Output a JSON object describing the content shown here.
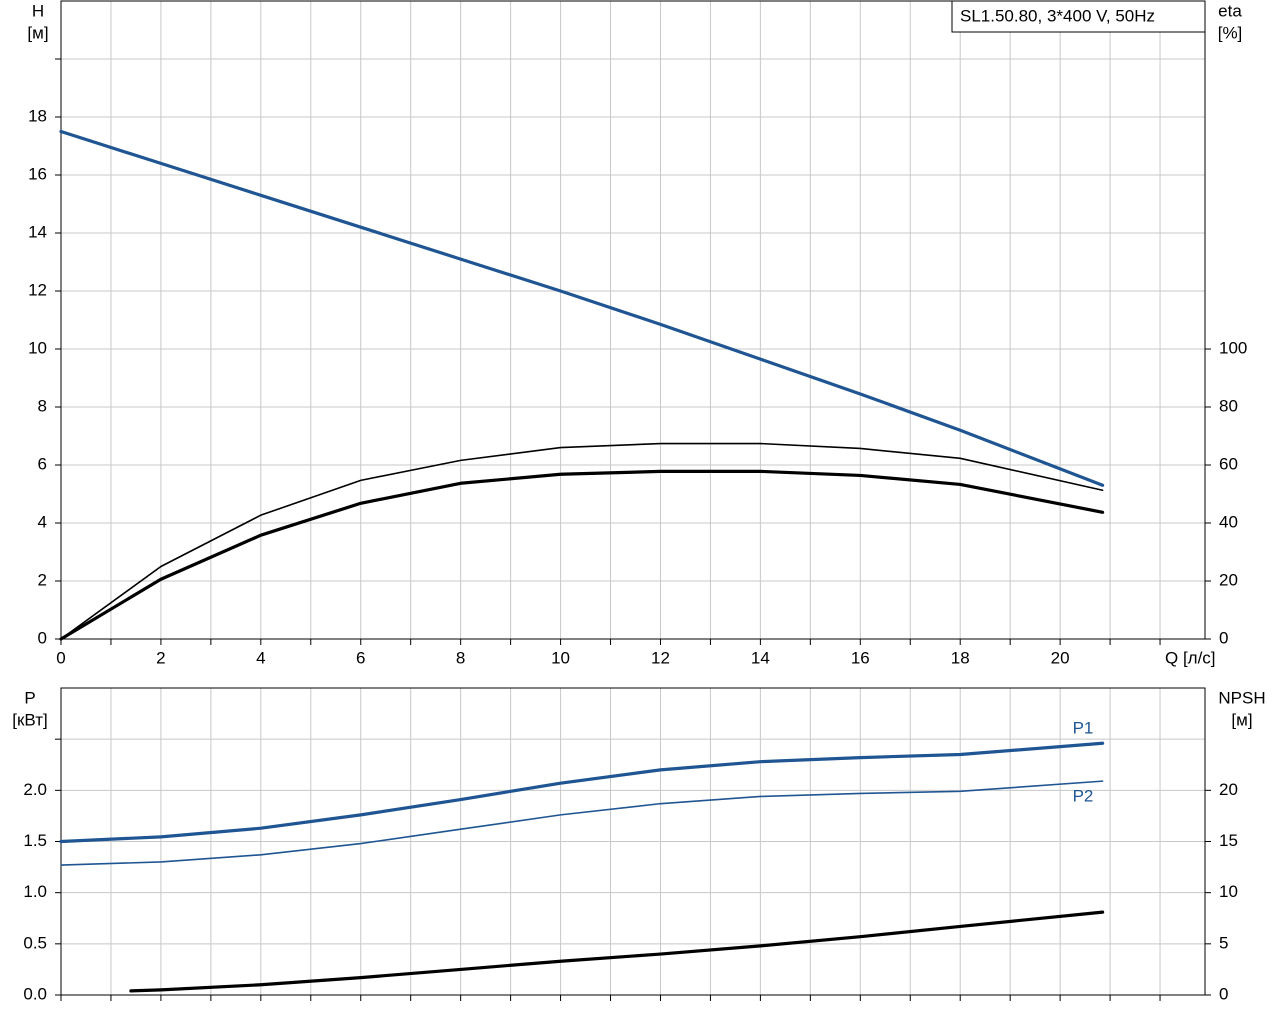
{
  "chart_data": [
    {
      "type": "line",
      "title": "SL1.50.80, 3*400 V, 50Hz",
      "ylabel": "H",
      "yunit": "[м]",
      "y2label": "eta",
      "y2unit": "[%]",
      "xlabel": "Q [л/с]",
      "xlim": [
        0,
        22.9
      ],
      "xticks": [
        0,
        2,
        4,
        6,
        8,
        10,
        12,
        14,
        16,
        18,
        20
      ],
      "x_minor_ticks": [
        1,
        3,
        5,
        7,
        9,
        11,
        13,
        15,
        17,
        19,
        21,
        22
      ],
      "ylim": [
        0,
        22
      ],
      "yticks": [
        0,
        2,
        4,
        6,
        8,
        10,
        12,
        14,
        16,
        18
      ],
      "y_minor_ticks": [
        20
      ],
      "y2lim": [
        0,
        220
      ],
      "y2ticks": [
        0,
        20,
        40,
        60,
        80,
        100
      ],
      "grid": true,
      "series": [
        {
          "color": "#1f5592",
          "line_width": 3.2,
          "x": [
            0,
            2,
            4,
            6,
            8,
            10,
            12,
            14,
            16,
            18,
            20.85
          ],
          "values": [
            17.5,
            16.4,
            15.3,
            14.2,
            13.1,
            12.0,
            10.85,
            9.65,
            8.45,
            7.2,
            5.3
          ]
        },
        {
          "color": "#000000",
          "line_width": 1.6,
          "axis": "y2",
          "x": [
            0,
            2,
            4,
            6,
            8,
            10,
            12,
            14,
            16,
            18,
            20.85
          ],
          "values": [
            0,
            25,
            42.7,
            54.7,
            61.6,
            66,
            67.4,
            67.4,
            65.7,
            62.3,
            51.3
          ]
        },
        {
          "color": "#000000",
          "line_width": 3.2,
          "axis": "y2",
          "x": [
            0,
            2,
            4,
            6,
            8,
            10,
            12,
            14,
            16,
            18,
            20.85
          ],
          "values": [
            0,
            20.6,
            35.8,
            46.8,
            53.7,
            56.8,
            57.8,
            57.8,
            56.4,
            53.3,
            43.7
          ]
        }
      ]
    },
    {
      "type": "line",
      "ylabel": "P",
      "yunit": "[кВт]",
      "y2label": "NPSH",
      "y2unit": "[м]",
      "xlim": [
        0,
        22.9
      ],
      "x_minor_ticks": [
        0,
        1,
        2,
        3,
        4,
        5,
        6,
        7,
        8,
        9,
        10,
        11,
        12,
        13,
        14,
        15,
        16,
        17,
        18,
        19,
        20,
        21,
        22
      ],
      "ylim": [
        0,
        3.0
      ],
      "yticks": [
        {
          "value": 0,
          "label": "0.0"
        },
        {
          "value": 0.5,
          "label": "0.5"
        },
        {
          "value": 1,
          "label": "1.0"
        },
        {
          "value": 1.5,
          "label": "1.5"
        },
        {
          "value": 2,
          "label": "2.0"
        }
      ],
      "y_minor_ticks": [
        2.5
      ],
      "y2lim": [
        0,
        30
      ],
      "y2ticks": [
        0,
        5,
        10,
        15,
        20
      ],
      "grid": true,
      "series": [
        {
          "name": "P1",
          "color": "#1f5592",
          "line_width": 3.2,
          "x": [
            0,
            2,
            4,
            6,
            8,
            10,
            12,
            14,
            16,
            18,
            20.85
          ],
          "values": [
            1.5,
            1.545,
            1.63,
            1.76,
            1.91,
            2.07,
            2.2,
            2.28,
            2.32,
            2.35,
            2.46
          ]
        },
        {
          "name": "P2",
          "color": "#1f5592",
          "line_width": 1.6,
          "x": [
            0,
            2,
            4,
            6,
            8,
            10,
            12,
            14,
            16,
            18,
            20.85
          ],
          "values": [
            1.27,
            1.3,
            1.37,
            1.48,
            1.62,
            1.76,
            1.87,
            1.94,
            1.97,
            1.99,
            2.09
          ]
        },
        {
          "color": "#000000",
          "line_width": 3.2,
          "axis": "y2",
          "x": [
            1.4,
            2,
            4,
            6,
            8,
            10,
            12,
            14,
            16,
            18,
            20.85
          ],
          "values": [
            0.4,
            0.5,
            1.0,
            1.7,
            2.5,
            3.3,
            4.0,
            4.8,
            5.7,
            6.7,
            8.1
          ]
        }
      ]
    }
  ]
}
